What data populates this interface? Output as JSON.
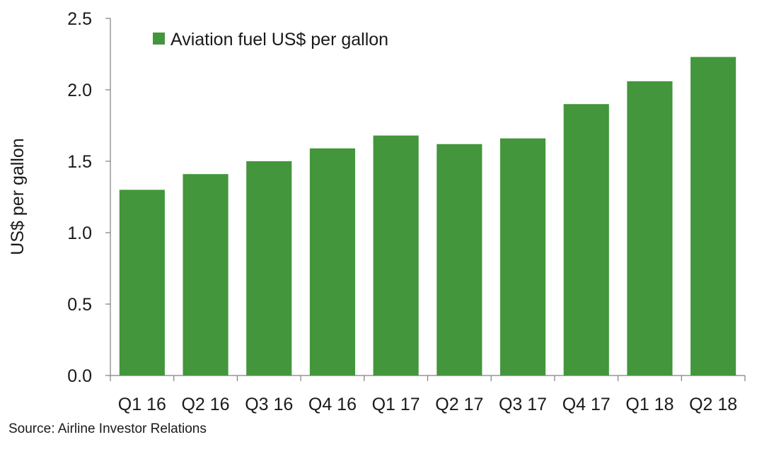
{
  "chart_data": {
    "type": "bar",
    "categories": [
      "Q1 16",
      "Q2 16",
      "Q3 16",
      "Q4 16",
      "Q1 17",
      "Q2 17",
      "Q3 17",
      "Q4 17",
      "Q1 18",
      "Q2 18"
    ],
    "series": [
      {
        "name": "Aviation fuel US$ per gallon",
        "color": "#43963b",
        "values": [
          1.3,
          1.41,
          1.5,
          1.59,
          1.68,
          1.62,
          1.66,
          1.9,
          2.06,
          2.23
        ]
      }
    ],
    "ylabel": "US$ per gallon",
    "xlabel": "",
    "ylim": [
      0,
      2.5
    ],
    "yticks": [
      "0.0",
      "0.5",
      "1.0",
      "1.5",
      "2.0",
      "2.5"
    ],
    "grid": false,
    "legend_position": "top-left"
  },
  "source": "Source: Airline Investor Relations"
}
